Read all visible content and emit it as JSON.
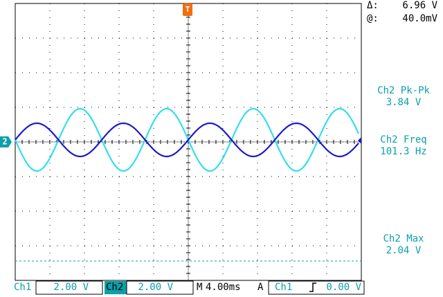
{
  "cursor_readout": {
    "delta_label": "Δ:",
    "delta": "6.96 V",
    "at_label": "@:",
    "at": "40.0mV"
  },
  "measurements": [
    {
      "name": "Ch2 Pk-Pk",
      "value": "3.84 V"
    },
    {
      "name": "Ch2 Freq",
      "value": "101.3 Hz"
    },
    {
      "name": "Ch2 Max",
      "value": "2.04 V"
    }
  ],
  "markers": {
    "trigger": "T",
    "channel": "2"
  },
  "status_bar": {
    "ch1_label": "Ch1",
    "ch1_scale": "2.00 V",
    "ch2_label": "Ch2",
    "ch2_scale": "2.00 V",
    "time_label": "M",
    "time_scale": "4.00ms",
    "trigger_mode": "A",
    "trigger_source": "Ch1",
    "trigger_level": "0.00 V"
  }
}
